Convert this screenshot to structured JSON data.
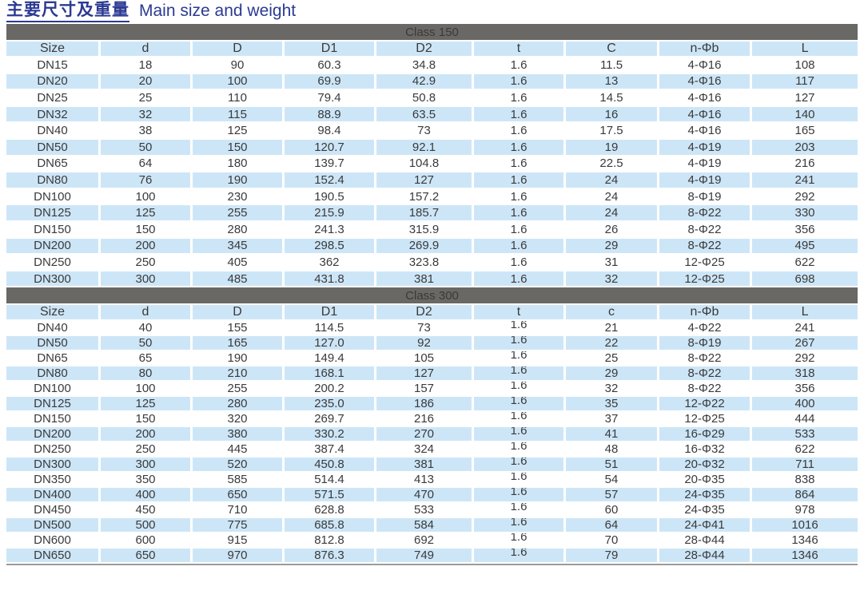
{
  "title": {
    "cn": "主要尺寸及重量",
    "en": "Main size and weight"
  },
  "colors": {
    "title_blue": "#2b3a92",
    "section_bar_gray": "#696865",
    "row_blue": "#cde6f7",
    "table_text": "#3a3a3a"
  },
  "sections": [
    {
      "label": "Class 150",
      "columns": [
        "Size",
        "d",
        "D",
        "D1",
        "D2",
        "t",
        "C",
        "n-Φb",
        "L"
      ],
      "rows": [
        [
          "DN15",
          "18",
          "90",
          "60.3",
          "34.8",
          "1.6",
          "11.5",
          "4-Φ16",
          "108"
        ],
        [
          "DN20",
          "20",
          "100",
          "69.9",
          "42.9",
          "1.6",
          "13",
          "4-Φ16",
          "117"
        ],
        [
          "DN25",
          "25",
          "110",
          "79.4",
          "50.8",
          "1.6",
          "14.5",
          "4-Φ16",
          "127"
        ],
        [
          "DN32",
          "32",
          "115",
          "88.9",
          "63.5",
          "1.6",
          "16",
          "4-Φ16",
          "140"
        ],
        [
          "DN40",
          "38",
          "125",
          "98.4",
          "73",
          "1.6",
          "17.5",
          "4-Φ16",
          "165"
        ],
        [
          "DN50",
          "50",
          "150",
          "120.7",
          "92.1",
          "1.6",
          "19",
          "4-Φ19",
          "203"
        ],
        [
          "DN65",
          "64",
          "180",
          "139.7",
          "104.8",
          "1.6",
          "22.5",
          "4-Φ19",
          "216"
        ],
        [
          "DN80",
          "76",
          "190",
          "152.4",
          "127",
          "1.6",
          "24",
          "4-Φ19",
          "241"
        ],
        [
          "DN100",
          "100",
          "230",
          "190.5",
          "157.2",
          "1.6",
          "24",
          "8-Φ19",
          "292"
        ],
        [
          "DN125",
          "125",
          "255",
          "215.9",
          "185.7",
          "1.6",
          "24",
          "8-Φ22",
          "330"
        ],
        [
          "DN150",
          "150",
          "280",
          "241.3",
          "315.9",
          "1.6",
          "26",
          "8-Φ22",
          "356"
        ],
        [
          "DN200",
          "200",
          "345",
          "298.5",
          "269.9",
          "1.6",
          "29",
          "8-Φ22",
          "495"
        ],
        [
          "DN250",
          "250",
          "405",
          "362",
          "323.8",
          "1.6",
          "31",
          "12-Φ25",
          "622"
        ],
        [
          "DN300",
          "300",
          "485",
          "431.8",
          "381",
          "1.6",
          "32",
          "12-Φ25",
          "698"
        ]
      ]
    },
    {
      "label": "Class 300",
      "columns": [
        "Size",
        "d",
        "D",
        "D1",
        "D2",
        "t",
        "c",
        "n-Φb",
        "L"
      ],
      "rows": [
        [
          "DN40",
          "40",
          "155",
          "114.5",
          "73",
          "1.6",
          "21",
          "4-Φ22",
          "241"
        ],
        [
          "DN50",
          "50",
          "165",
          "127.0",
          "92",
          "1.6",
          "22",
          "8-Φ19",
          "267"
        ],
        [
          "DN65",
          "65",
          "190",
          "149.4",
          "105",
          "1.6",
          "25",
          "8-Φ22",
          "292"
        ],
        [
          "DN80",
          "80",
          "210",
          "168.1",
          "127",
          "1.6",
          "29",
          "8-Φ22",
          "318"
        ],
        [
          "DN100",
          "100",
          "255",
          "200.2",
          "157",
          "1.6",
          "32",
          "8-Φ22",
          "356"
        ],
        [
          "DN125",
          "125",
          "280",
          "235.0",
          "186",
          "1.6",
          "35",
          "12-Φ22",
          "400"
        ],
        [
          "DN150",
          "150",
          "320",
          "269.7",
          "216",
          "1.6",
          "37",
          "12-Φ25",
          "444"
        ],
        [
          "DN200",
          "200",
          "380",
          "330.2",
          "270",
          "1.6",
          "41",
          "16-Φ29",
          "533"
        ],
        [
          "DN250",
          "250",
          "445",
          "387.4",
          "324",
          "1.6",
          "48",
          "16-Φ32",
          "622"
        ],
        [
          "DN300",
          "300",
          "520",
          "450.8",
          "381",
          "1.6",
          "51",
          "20-Φ32",
          "711"
        ],
        [
          "DN350",
          "350",
          "585",
          "514.4",
          "413",
          "1.6",
          "54",
          "20-Φ35",
          "838"
        ],
        [
          "DN400",
          "400",
          "650",
          "571.5",
          "470",
          "1.6",
          "57",
          "24-Φ35",
          "864"
        ],
        [
          "DN450",
          "450",
          "710",
          "628.8",
          "533",
          "1.6",
          "60",
          "24-Φ35",
          "978"
        ],
        [
          "DN500",
          "500",
          "775",
          "685.8",
          "584",
          "1.6",
          "64",
          "24-Φ41",
          "1016"
        ],
        [
          "DN600",
          "600",
          "915",
          "812.8",
          "692",
          "1.6",
          "70",
          "28-Φ44",
          "1346"
        ],
        [
          "DN650",
          "650",
          "970",
          "876.3",
          "749",
          "1.6",
          "79",
          "28-Φ44",
          "1346"
        ]
      ]
    }
  ],
  "chart_data": {
    "type": "table",
    "title": "主要尺寸及重量 Main size and weight"
  }
}
